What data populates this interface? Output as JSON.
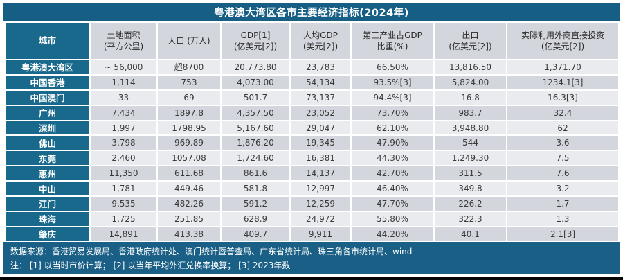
{
  "title": "粤港澳大湾区各市主要经济指标(2024年)",
  "columns": [
    {
      "lines": [
        "城市"
      ]
    },
    {
      "lines": [
        "土地面积",
        "(平方公里)"
      ]
    },
    {
      "lines": [
        "人口 (万人)"
      ]
    },
    {
      "lines": [
        "GDP[1]",
        "(亿美元[2])"
      ]
    },
    {
      "lines": [
        "人均GDP",
        "(美元[2])"
      ]
    },
    {
      "lines": [
        "第三产业占GDP",
        "比重(%)"
      ]
    },
    {
      "lines": [
        "出口",
        "(亿美元[2])"
      ]
    },
    {
      "lines": [
        "实际利用外商直接投资",
        "(亿美元[2])"
      ]
    }
  ],
  "rows": [
    {
      "city": "粤港澳大湾区",
      "values": [
        "~ 56,000",
        "超8700",
        "20,773.80",
        "23,783",
        "66.50%",
        "13,816.50",
        "1,371.70"
      ]
    },
    {
      "city": "中国香港",
      "values": [
        "1,114",
        "753",
        "4,073.00",
        "54,134",
        "93.5%[3]",
        "5,824.00",
        "1234.1[3]"
      ]
    },
    {
      "city": "中国澳门",
      "values": [
        "33",
        "69",
        "501.7",
        "73,137",
        "94.4%[3]",
        "16.8",
        "16.3[3]"
      ]
    },
    {
      "city": "广州",
      "values": [
        "7,434",
        "1897.8",
        "4,357.50",
        "23,052",
        "73.70%",
        "983.7",
        "32.4"
      ]
    },
    {
      "city": "深圳",
      "values": [
        "1,997",
        "1798.95",
        "5,167.60",
        "29,047",
        "62.10%",
        "3,948.80",
        "62"
      ]
    },
    {
      "city": "佛山",
      "values": [
        "3,798",
        "969.89",
        "1,876.20",
        "19,345",
        "47.90%",
        "544",
        "3.6"
      ]
    },
    {
      "city": "东莞",
      "values": [
        "2,460",
        "1057.08",
        "1,724.60",
        "16,381",
        "44.30%",
        "1,249.30",
        "7.5"
      ]
    },
    {
      "city": "惠州",
      "values": [
        "11,350",
        "611.68",
        "861.6",
        "14,137",
        "42.70%",
        "311.5",
        "7.6"
      ]
    },
    {
      "city": "中山",
      "values": [
        "1,781",
        "449.46",
        "581.8",
        "12,997",
        "46.40%",
        "349.8",
        "3.2"
      ]
    },
    {
      "city": "江门",
      "values": [
        "9,535",
        "482.26",
        "591.2",
        "12,259",
        "47.70%",
        "226.2",
        "1.7"
      ]
    },
    {
      "city": "珠海",
      "values": [
        "1,725",
        "251.85",
        "628.9",
        "24,972",
        "55.80%",
        "322.3",
        "1.3"
      ]
    },
    {
      "city": "肇庆",
      "values": [
        "14,891",
        "413.38",
        "409.7",
        "9,911",
        "44.20%",
        "40.1",
        "2.1[3]"
      ]
    }
  ],
  "footer": {
    "source": "数据来源：香港贸易发展局、香港政府统计处、澳门统计暨普查局、广东省统计局、珠三角各市统计局、wind",
    "notes": "注： [1] 以当时市价计算； [2] 以当年平均外汇兑换率换算； [3] 2023年数"
  },
  "colors": {
    "title_bar": "#175e85",
    "city_column": "#18698c",
    "row_light": "#e9ebee",
    "row_gray": "#d3d7dd",
    "footer_bar": "#1a5f85",
    "text_dark": "#3a3a3a",
    "text_white": "#ffffff"
  }
}
